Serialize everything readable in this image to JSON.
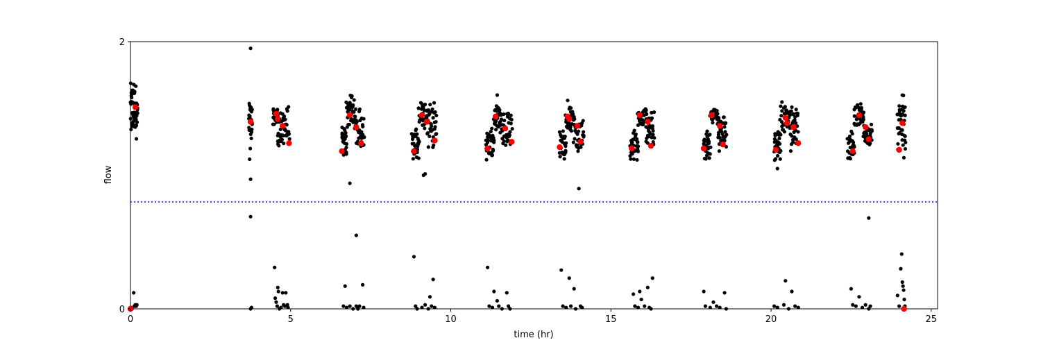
{
  "chart_data": {
    "type": "scatter",
    "xlabel": "time (hr)",
    "ylabel": "flow",
    "xlim": [
      0,
      25.2
    ],
    "ylim": [
      0,
      2
    ],
    "xticks": [
      0,
      5,
      10,
      15,
      20,
      25
    ],
    "yticks": [
      0,
      2
    ],
    "grid": false,
    "threshold": {
      "value": 0.8,
      "color": "#0000ff",
      "style": "dotted"
    },
    "raw_color": "#000000",
    "mean_color": "#ff0000",
    "raw_clusters": [
      {
        "x0": 0.0,
        "x1": 0.22,
        "ymin": 1.27,
        "ymax": 1.69,
        "n": 26
      },
      {
        "x0": 3.7,
        "x1": 3.8,
        "ymin": 1.25,
        "ymax": 1.55,
        "n": 12
      },
      {
        "x0": 4.45,
        "x1": 4.6,
        "ymin": 1.38,
        "ymax": 1.52,
        "n": 14
      },
      {
        "x0": 4.6,
        "x1": 4.95,
        "ymin": 1.18,
        "ymax": 1.52,
        "n": 22
      },
      {
        "x0": 6.6,
        "x1": 6.75,
        "ymin": 1.11,
        "ymax": 1.36,
        "n": 16
      },
      {
        "x0": 6.75,
        "x1": 7.0,
        "ymin": 1.35,
        "ymax": 1.6,
        "n": 16
      },
      {
        "x0": 7.0,
        "x1": 7.3,
        "ymin": 1.2,
        "ymax": 1.5,
        "n": 18
      },
      {
        "x0": 8.8,
        "x1": 9.0,
        "ymin": 1.12,
        "ymax": 1.36,
        "n": 16
      },
      {
        "x0": 9.0,
        "x1": 9.25,
        "ymin": 1.35,
        "ymax": 1.55,
        "n": 16
      },
      {
        "x0": 9.25,
        "x1": 9.55,
        "ymin": 1.2,
        "ymax": 1.55,
        "n": 18
      },
      {
        "x0": 11.1,
        "x1": 11.35,
        "ymin": 1.11,
        "ymax": 1.35,
        "n": 16
      },
      {
        "x0": 11.35,
        "x1": 11.55,
        "ymin": 1.34,
        "ymax": 1.52,
        "n": 14
      },
      {
        "x0": 11.55,
        "x1": 11.9,
        "ymin": 1.2,
        "ymax": 1.48,
        "n": 18
      },
      {
        "x0": 13.4,
        "x1": 13.6,
        "ymin": 1.12,
        "ymax": 1.35,
        "n": 16
      },
      {
        "x0": 13.6,
        "x1": 13.85,
        "ymin": 1.32,
        "ymax": 1.52,
        "n": 16
      },
      {
        "x0": 13.85,
        "x1": 14.15,
        "ymin": 1.18,
        "ymax": 1.45,
        "n": 18
      },
      {
        "x0": 15.6,
        "x1": 15.85,
        "ymin": 1.11,
        "ymax": 1.35,
        "n": 16
      },
      {
        "x0": 15.85,
        "x1": 16.1,
        "ymin": 1.37,
        "ymax": 1.5,
        "n": 14
      },
      {
        "x0": 16.1,
        "x1": 16.35,
        "ymin": 1.2,
        "ymax": 1.48,
        "n": 16
      },
      {
        "x0": 17.9,
        "x1": 18.1,
        "ymin": 1.11,
        "ymax": 1.35,
        "n": 16
      },
      {
        "x0": 18.1,
        "x1": 18.35,
        "ymin": 1.38,
        "ymax": 1.5,
        "n": 14
      },
      {
        "x0": 18.35,
        "x1": 18.6,
        "ymin": 1.18,
        "ymax": 1.45,
        "n": 16
      },
      {
        "x0": 20.1,
        "x1": 20.3,
        "ymin": 1.1,
        "ymax": 1.36,
        "n": 16
      },
      {
        "x0": 20.3,
        "x1": 20.6,
        "ymin": 1.32,
        "ymax": 1.56,
        "n": 16
      },
      {
        "x0": 20.6,
        "x1": 20.85,
        "ymin": 1.18,
        "ymax": 1.52,
        "n": 16
      },
      {
        "x0": 22.4,
        "x1": 22.6,
        "ymin": 1.12,
        "ymax": 1.34,
        "n": 14
      },
      {
        "x0": 22.6,
        "x1": 22.9,
        "ymin": 1.35,
        "ymax": 1.54,
        "n": 16
      },
      {
        "x0": 22.9,
        "x1": 23.15,
        "ymin": 1.22,
        "ymax": 1.38,
        "n": 14
      },
      {
        "x0": 23.95,
        "x1": 24.2,
        "ymin": 1.12,
        "ymax": 1.6,
        "n": 20
      }
    ],
    "raw_outliers": [
      [
        3.75,
        1.95
      ],
      [
        3.75,
        0.97
      ],
      [
        3.75,
        0.69
      ],
      [
        3.72,
        1.12
      ],
      [
        3.74,
        1.2
      ],
      [
        6.85,
        0.94
      ],
      [
        7.05,
        0.55
      ],
      [
        9.15,
        1.0
      ],
      [
        9.2,
        1.01
      ],
      [
        14.0,
        0.9
      ],
      [
        20.2,
        1.05
      ],
      [
        23.05,
        0.68
      ],
      [
        4.52,
        1.48
      ],
      [
        11.45,
        1.6
      ],
      [
        24.1,
        1.6
      ],
      [
        9.45,
        1.43
      ],
      [
        13.65,
        1.56
      ]
    ],
    "low_points": [
      [
        0.02,
        0.01
      ],
      [
        0.05,
        0.0
      ],
      [
        0.1,
        0.12
      ],
      [
        0.12,
        0.02
      ],
      [
        0.15,
        0.03
      ],
      [
        0.18,
        0.02
      ],
      [
        0.2,
        0.03
      ],
      [
        3.75,
        0.0
      ],
      [
        3.78,
        0.01
      ],
      [
        4.5,
        0.31
      ],
      [
        4.52,
        0.08
      ],
      [
        4.55,
        0.05
      ],
      [
        4.58,
        0.02
      ],
      [
        4.6,
        0.16
      ],
      [
        4.62,
        0.13
      ],
      [
        4.65,
        0.0
      ],
      [
        4.7,
        0.01
      ],
      [
        4.75,
        0.12
      ],
      [
        4.78,
        0.03
      ],
      [
        4.82,
        0.02
      ],
      [
        4.85,
        0.12
      ],
      [
        4.9,
        0.03
      ],
      [
        4.92,
        0.01
      ],
      [
        6.65,
        0.02
      ],
      [
        6.7,
        0.17
      ],
      [
        6.75,
        0.01
      ],
      [
        6.85,
        0.02
      ],
      [
        6.95,
        0.0
      ],
      [
        7.05,
        0.02
      ],
      [
        7.1,
        0.0
      ],
      [
        7.15,
        0.02
      ],
      [
        7.25,
        0.18
      ],
      [
        7.28,
        0.01
      ],
      [
        8.85,
        0.39
      ],
      [
        8.9,
        0.02
      ],
      [
        8.95,
        0.0
      ],
      [
        9.1,
        0.01
      ],
      [
        9.2,
        0.03
      ],
      [
        9.3,
        0.0
      ],
      [
        9.35,
        0.09
      ],
      [
        9.4,
        0.02
      ],
      [
        9.45,
        0.22
      ],
      [
        9.5,
        0.01
      ],
      [
        11.15,
        0.31
      ],
      [
        11.2,
        0.02
      ],
      [
        11.3,
        0.01
      ],
      [
        11.35,
        0.13
      ],
      [
        11.45,
        0.06
      ],
      [
        11.5,
        0.02
      ],
      [
        11.6,
        0.0
      ],
      [
        11.75,
        0.12
      ],
      [
        11.8,
        0.02
      ],
      [
        11.85,
        0.0
      ],
      [
        13.45,
        0.29
      ],
      [
        13.5,
        0.02
      ],
      [
        13.6,
        0.01
      ],
      [
        13.7,
        0.23
      ],
      [
        13.75,
        0.02
      ],
      [
        13.85,
        0.15
      ],
      [
        13.9,
        0.0
      ],
      [
        14.05,
        0.02
      ],
      [
        14.1,
        0.01
      ],
      [
        15.7,
        0.11
      ],
      [
        15.75,
        0.02
      ],
      [
        15.85,
        0.01
      ],
      [
        15.9,
        0.13
      ],
      [
        15.95,
        0.07
      ],
      [
        16.05,
        0.02
      ],
      [
        16.15,
        0.16
      ],
      [
        16.2,
        0.01
      ],
      [
        16.3,
        0.23
      ],
      [
        16.25,
        0.0
      ],
      [
        17.9,
        0.13
      ],
      [
        17.95,
        0.02
      ],
      [
        18.1,
        0.01
      ],
      [
        18.2,
        0.05
      ],
      [
        18.3,
        0.02
      ],
      [
        18.4,
        0.01
      ],
      [
        18.55,
        0.12
      ],
      [
        18.6,
        0.0
      ],
      [
        20.1,
        0.02
      ],
      [
        20.2,
        0.01
      ],
      [
        20.4,
        0.03
      ],
      [
        20.45,
        0.21
      ],
      [
        20.55,
        0.0
      ],
      [
        20.65,
        0.13
      ],
      [
        20.75,
        0.02
      ],
      [
        20.85,
        0.01
      ],
      [
        22.5,
        0.15
      ],
      [
        22.55,
        0.03
      ],
      [
        22.65,
        0.02
      ],
      [
        22.75,
        0.09
      ],
      [
        22.85,
        0.01
      ],
      [
        22.95,
        0.03
      ],
      [
        23.05,
        0.0
      ],
      [
        23.1,
        0.02
      ],
      [
        23.95,
        0.1
      ],
      [
        24.0,
        0.02
      ],
      [
        24.05,
        0.3
      ],
      [
        24.08,
        0.41
      ],
      [
        24.1,
        0.2
      ],
      [
        24.12,
        0.17
      ],
      [
        24.14,
        0.14
      ],
      [
        24.16,
        0.07
      ],
      [
        24.18,
        0.02
      ]
    ],
    "means": [
      [
        0.0,
        0.0
      ],
      [
        0.15,
        1.51
      ],
      [
        3.75,
        1.4
      ],
      [
        4.55,
        1.46
      ],
      [
        4.6,
        1.42
      ],
      [
        4.75,
        1.37
      ],
      [
        4.95,
        1.24
      ],
      [
        6.6,
        1.18
      ],
      [
        6.85,
        1.45
      ],
      [
        7.05,
        1.36
      ],
      [
        7.2,
        1.24
      ],
      [
        8.85,
        1.18
      ],
      [
        9.1,
        1.45
      ],
      [
        9.25,
        1.4
      ],
      [
        9.5,
        1.26
      ],
      [
        11.15,
        1.2
      ],
      [
        11.4,
        1.44
      ],
      [
        11.7,
        1.35
      ],
      [
        11.9,
        1.25
      ],
      [
        13.4,
        1.21
      ],
      [
        13.65,
        1.44
      ],
      [
        13.7,
        1.42
      ],
      [
        13.95,
        1.37
      ],
      [
        14.05,
        1.25
      ],
      [
        15.65,
        1.2
      ],
      [
        15.9,
        1.45
      ],
      [
        16.15,
        1.4
      ],
      [
        16.25,
        1.22
      ],
      [
        17.9,
        1.2
      ],
      [
        18.15,
        1.45
      ],
      [
        18.4,
        1.37
      ],
      [
        18.5,
        1.23
      ],
      [
        20.15,
        1.19
      ],
      [
        20.45,
        1.43
      ],
      [
        20.5,
        1.39
      ],
      [
        20.7,
        1.36
      ],
      [
        20.85,
        1.24
      ],
      [
        22.55,
        1.18
      ],
      [
        22.75,
        1.45
      ],
      [
        22.95,
        1.36
      ],
      [
        23.05,
        1.27
      ],
      [
        24.0,
        1.19
      ],
      [
        24.1,
        1.39
      ],
      [
        24.15,
        0.0
      ]
    ]
  }
}
